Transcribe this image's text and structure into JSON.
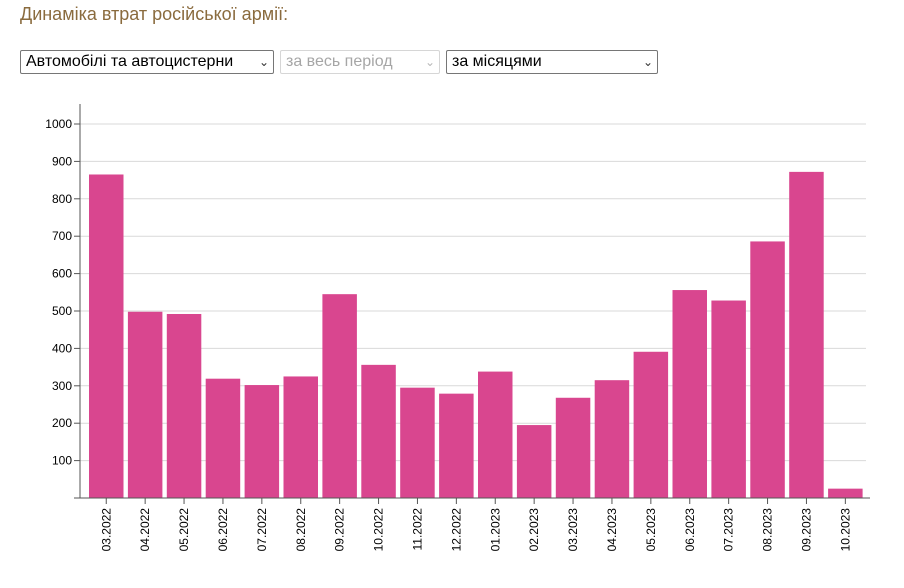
{
  "page": {
    "title": "Динаміка втрат російської армії:"
  },
  "controls": {
    "metric": "Автомобілі та автоцистерни",
    "period": "за весь період",
    "period_disabled": true,
    "grouping": "за місяцями"
  },
  "colors": {
    "bar": "#d9468f",
    "grid": "#d9d9d9",
    "axis": "#555555"
  },
  "chart_data": {
    "type": "bar",
    "categories": [
      "03.2022",
      "04.2022",
      "05.2022",
      "06.2022",
      "07.2022",
      "08.2022",
      "09.2022",
      "10.2022",
      "11.2022",
      "12.2022",
      "01.2023",
      "02.2023",
      "03.2023",
      "04.2023",
      "05.2023",
      "06.2023",
      "07.2023",
      "08.2023",
      "09.2023",
      "10.2023"
    ],
    "values": [
      865,
      498,
      492,
      319,
      302,
      325,
      545,
      356,
      295,
      279,
      338,
      195,
      268,
      315,
      391,
      556,
      528,
      686,
      872,
      25
    ],
    "yticks": [
      100,
      200,
      300,
      400,
      500,
      600,
      700,
      800,
      900,
      1000
    ],
    "ylim": [
      0,
      1000
    ],
    "grid": true,
    "legend": "none",
    "title": "",
    "xlabel": "",
    "ylabel": ""
  }
}
